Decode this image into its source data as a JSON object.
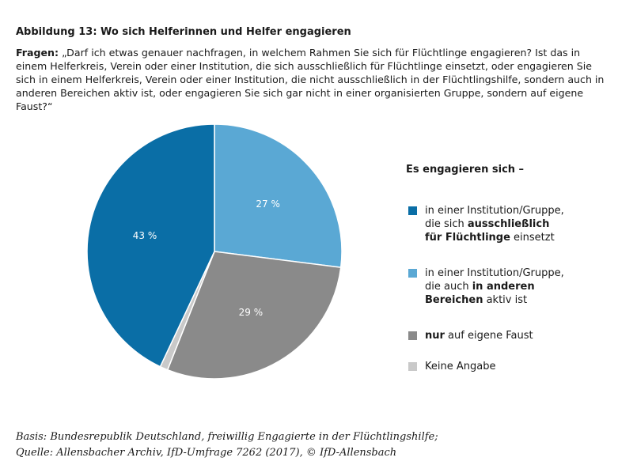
{
  "chart_data": {
    "type": "pie",
    "title": "Abbildung 13: Wo sich Helferinnen und Helfer engagieren",
    "question_label": "Fragen:",
    "question": "„Darf ich etwas genauer nachfragen, in welchem Rahmen Sie sich für Flüchtlinge engagieren? Ist das in einem Helferkreis, Verein oder einer Institution, die sich ausschließlich für Flüchtlinge einsetzt, oder engagieren Sie sich in einem Helferkreis, Verein oder einer Institution, die nicht ausschließlich in der Flüchtlingshilfe, sondern auch in anderen Bereichen aktiv ist, oder engagieren Sie sich gar nicht in einer organisierten Gruppe, sondern auf eigene Faust?“",
    "legend_title": "Es engagieren sich –",
    "categories": [
      [
        {
          "text": "in einer Institution/Gruppe, die auch ",
          "bold": false
        },
        {
          "text": "in anderen Bereichen",
          "bold": true
        },
        {
          "text": " aktiv ist",
          "bold": false
        }
      ],
      [
        {
          "text": "nur",
          "bold": true
        },
        {
          "text": " auf eigene Faust",
          "bold": false
        }
      ],
      [
        {
          "text": "Keine Angabe",
          "bold": false
        }
      ],
      [
        {
          "text": "in einer Institution/Gruppe, die sich ",
          "bold": false
        },
        {
          "text": "ausschließlich für Flüchtlinge",
          "bold": true
        },
        {
          "text": " einsetzt",
          "bold": false
        }
      ]
    ],
    "values": [
      27,
      29,
      1,
      43
    ],
    "value_labels": [
      "27 %",
      "29 %",
      null,
      "43 %"
    ],
    "colors": [
      "#5aa8d4",
      "#8a8a8a",
      "#c9c9c9",
      "#0a6ea6"
    ],
    "legend_order": [
      3,
      0,
      1,
      2
    ],
    "start_angle": -90,
    "direction": "clockwise",
    "footnote": [
      "Basis: Bundesrepublik Deutschland, freiwillig Engagierte in der Flüchtlingshilfe;",
      "Quelle: Allensbacher Archiv, IfD-Umfrage 7262 (2017), © IfD-Allensbach"
    ]
  }
}
